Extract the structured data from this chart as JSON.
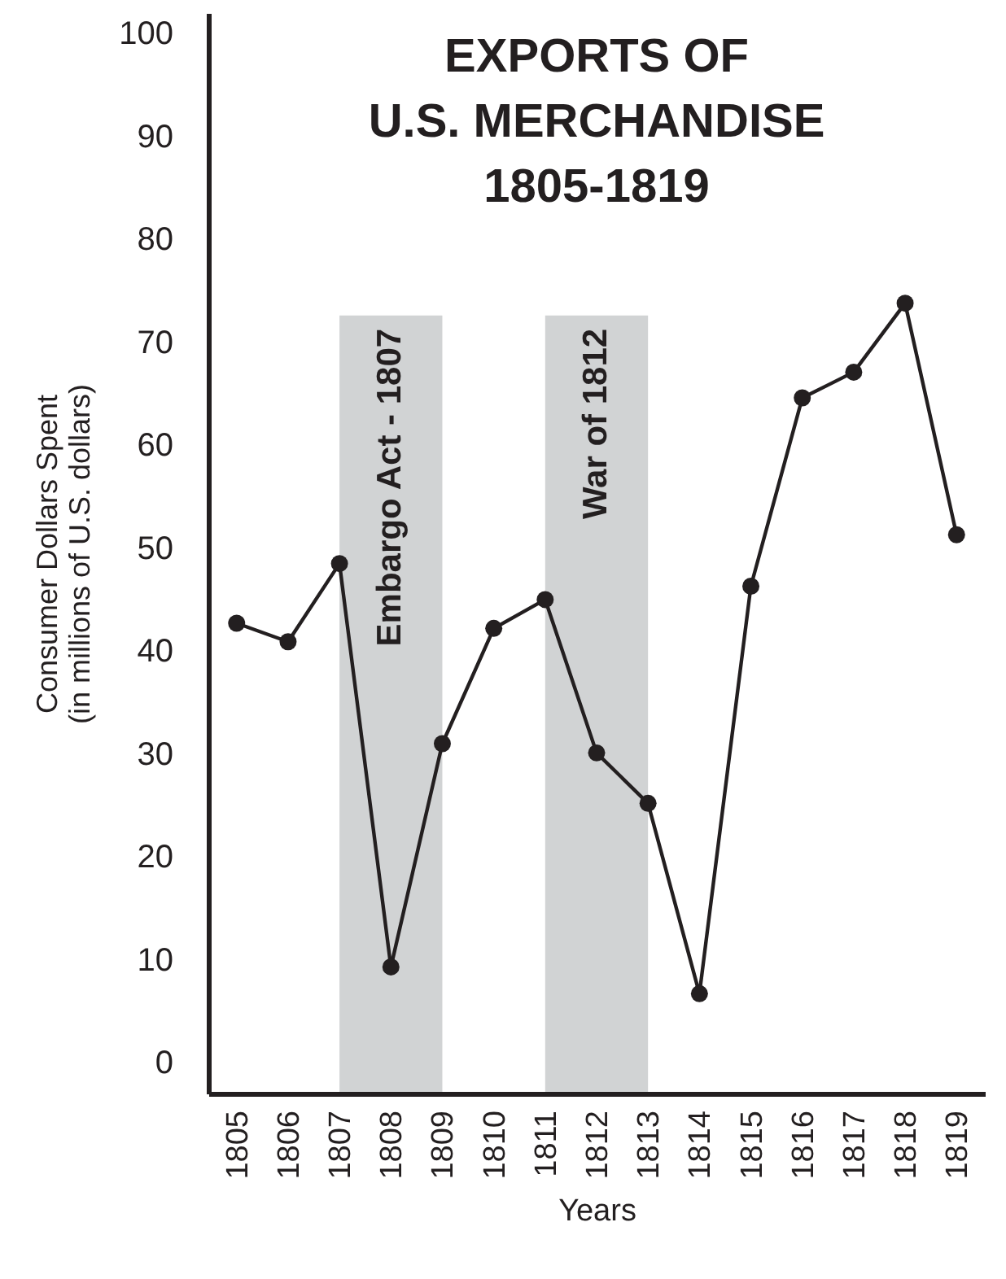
{
  "chart_data": {
    "type": "line",
    "title": "EXPORTS OF\nU.S. MERCHANDISE\n1805-1819",
    "xlabel": "Years",
    "ylabel": "Consumer Dollars Spent\n(in millions of U.S. dollars)",
    "categories": [
      "1805",
      "1806",
      "1807",
      "1808",
      "1809",
      "1810",
      "1811",
      "1812",
      "1813",
      "1814",
      "1815",
      "1816",
      "1817",
      "1818",
      "1819"
    ],
    "series": [
      {
        "color": "#231f20",
        "values": [
          42.7,
          40.9,
          48.5,
          9.3,
          31.0,
          42.2,
          45.0,
          30.1,
          25.2,
          6.7,
          46.3,
          64.6,
          67.1,
          73.8,
          51.3
        ]
      }
    ],
    "marker": "circle",
    "line_style": "solid",
    "grid": false,
    "ylim": [
      -3,
      102
    ],
    "yticks": [
      0,
      10,
      20,
      30,
      40,
      50,
      60,
      70,
      80,
      90,
      100
    ],
    "bands": [
      {
        "axis": "x",
        "from": "1807",
        "to": "1809",
        "label": "Embargo Act - 1807",
        "color": "#d1d3d4"
      },
      {
        "axis": "x",
        "from": "1811",
        "to": "1813",
        "label": "War of 1812",
        "color": "#d1d3d4"
      }
    ]
  }
}
